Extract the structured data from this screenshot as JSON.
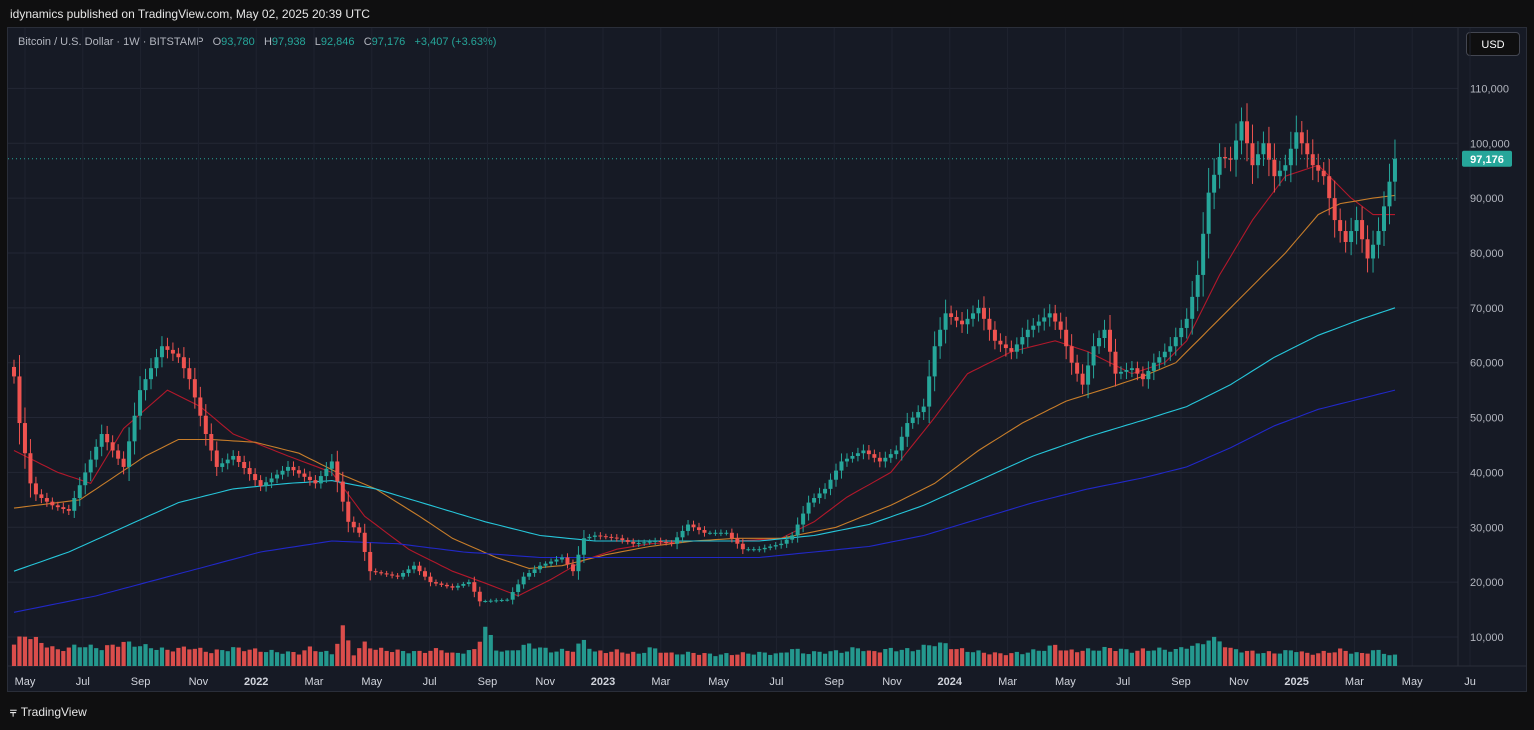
{
  "header": {
    "published": "idynamics published on TradingView.com, May 02, 2025 20:39 UTC"
  },
  "legend": {
    "symbol": "Bitcoin / U.S. Dollar · 1W · BITSTAMP",
    "open_label": "O",
    "open": "93,780",
    "high_label": "H",
    "high": "97,938",
    "low_label": "L",
    "low": "92,846",
    "close_label": "C",
    "close": "97,176",
    "change": "+3,407 (+3.63%)"
  },
  "currency_button": "USD",
  "price_badge": "97,176",
  "footer": {
    "brand": "TradingView",
    "logo_icon": "tradingview-logo-icon"
  },
  "colors": {
    "up": "#26a69a",
    "down": "#ef5350",
    "background": "#161a25"
  },
  "chart_data": {
    "type": "candlestick",
    "interval": "1W",
    "ylim": [
      3000,
      118000
    ],
    "y_ticks": [
      10000,
      20000,
      30000,
      40000,
      50000,
      60000,
      70000,
      80000,
      90000,
      100000,
      110000
    ],
    "y_tick_labels": [
      "10,000",
      "20,000",
      "30,000",
      "40,000",
      "50,000",
      "60,000",
      "70,000",
      "80,000",
      "90,000",
      "100,000",
      "110,000"
    ],
    "x_tick_labels": [
      "May",
      "Jul",
      "Sep",
      "Nov",
      "2022",
      "Mar",
      "May",
      "Jul",
      "Sep",
      "Nov",
      "2023",
      "Mar",
      "May",
      "Jul",
      "Sep",
      "Nov",
      "2024",
      "Mar",
      "May",
      "Jul",
      "Sep",
      "Nov",
      "2025",
      "Mar",
      "May",
      "Ju"
    ],
    "last_price": 97176,
    "price_anchors": [
      [
        0,
        57500
      ],
      [
        1,
        49000
      ],
      [
        3,
        38000
      ],
      [
        4,
        36000
      ],
      [
        7,
        34000
      ],
      [
        10,
        33000
      ],
      [
        13,
        40000
      ],
      [
        16,
        47000
      ],
      [
        20,
        41000
      ],
      [
        23,
        55000
      ],
      [
        27,
        63000
      ],
      [
        30,
        61000
      ],
      [
        32,
        57000
      ],
      [
        35,
        47000
      ],
      [
        37,
        41000
      ],
      [
        40,
        43000
      ],
      [
        45,
        37500
      ],
      [
        50,
        41000
      ],
      [
        55,
        38000
      ],
      [
        58,
        42000
      ],
      [
        61,
        31000
      ],
      [
        63,
        29000
      ],
      [
        65,
        22000
      ],
      [
        70,
        21000
      ],
      [
        73,
        23000
      ],
      [
        76,
        20000
      ],
      [
        80,
        19000
      ],
      [
        83,
        20000
      ],
      [
        85,
        16500
      ],
      [
        90,
        16800
      ],
      [
        93,
        21000
      ],
      [
        96,
        23000
      ],
      [
        100,
        24500
      ],
      [
        102,
        22000
      ],
      [
        104,
        28000
      ],
      [
        106,
        28500
      ],
      [
        110,
        28000
      ],
      [
        113,
        27000
      ],
      [
        117,
        27500
      ],
      [
        120,
        27000
      ],
      [
        123,
        30500
      ],
      [
        126,
        29000
      ],
      [
        130,
        29000
      ],
      [
        133,
        26000
      ],
      [
        136,
        26000
      ],
      [
        140,
        27000
      ],
      [
        142,
        28500
      ],
      [
        145,
        34500
      ],
      [
        148,
        37000
      ],
      [
        151,
        42000
      ],
      [
        155,
        44000
      ],
      [
        158,
        42000
      ],
      [
        161,
        44000
      ],
      [
        163,
        49000
      ],
      [
        166,
        52000
      ],
      [
        168,
        63000
      ],
      [
        170,
        69000
      ],
      [
        173,
        67000
      ],
      [
        176,
        70000
      ],
      [
        179,
        64000
      ],
      [
        182,
        62000
      ],
      [
        185,
        66000
      ],
      [
        189,
        69000
      ],
      [
        191,
        66000
      ],
      [
        193,
        60000
      ],
      [
        195,
        56000
      ],
      [
        197,
        63000
      ],
      [
        199,
        66000
      ],
      [
        201,
        58000
      ],
      [
        204,
        59000
      ],
      [
        206,
        57000
      ],
      [
        208,
        60000
      ],
      [
        211,
        63000
      ],
      [
        214,
        68000
      ],
      [
        216,
        76000
      ],
      [
        218,
        91000
      ],
      [
        220,
        97500
      ],
      [
        222,
        97000
      ],
      [
        224,
        104000
      ],
      [
        226,
        96000
      ],
      [
        228,
        100000
      ],
      [
        230,
        94000
      ],
      [
        232,
        96000
      ],
      [
        234,
        102000
      ],
      [
        237,
        96000
      ],
      [
        239,
        94000
      ],
      [
        241,
        86000
      ],
      [
        243,
        82000
      ],
      [
        245,
        86000
      ],
      [
        247,
        79000
      ],
      [
        249,
        84000
      ],
      [
        251,
        93000
      ],
      [
        252,
        97176
      ]
    ],
    "volume_anchors": [
      [
        0,
        11500
      ],
      [
        2,
        17000
      ],
      [
        5,
        12500
      ],
      [
        8,
        8500
      ],
      [
        12,
        11000
      ],
      [
        16,
        9500
      ],
      [
        20,
        12500
      ],
      [
        24,
        10500
      ],
      [
        28,
        8500
      ],
      [
        32,
        10000
      ],
      [
        36,
        7500
      ],
      [
        40,
        9500
      ],
      [
        44,
        8500
      ],
      [
        48,
        7500
      ],
      [
        52,
        7000
      ],
      [
        54,
        9500
      ],
      [
        56,
        8000
      ],
      [
        58,
        6500
      ],
      [
        60,
        20000
      ],
      [
        62,
        6500
      ],
      [
        64,
        12000
      ],
      [
        66,
        9000
      ],
      [
        70,
        8000
      ],
      [
        74,
        7500
      ],
      [
        78,
        9000
      ],
      [
        80,
        6500
      ],
      [
        84,
        8500
      ],
      [
        86,
        21000
      ],
      [
        88,
        9000
      ],
      [
        90,
        7500
      ],
      [
        94,
        11500
      ],
      [
        98,
        8000
      ],
      [
        102,
        8500
      ],
      [
        104,
        13500
      ],
      [
        106,
        7500
      ],
      [
        110,
        8000
      ],
      [
        114,
        6500
      ],
      [
        116,
        9500
      ],
      [
        120,
        6500
      ],
      [
        124,
        7000
      ],
      [
        128,
        6000
      ],
      [
        132,
        6500
      ],
      [
        136,
        7000
      ],
      [
        140,
        6500
      ],
      [
        142,
        9500
      ],
      [
        144,
        7000
      ],
      [
        148,
        7500
      ],
      [
        152,
        8000
      ],
      [
        154,
        10000
      ],
      [
        156,
        7500
      ],
      [
        160,
        9000
      ],
      [
        164,
        8500
      ],
      [
        168,
        12000
      ],
      [
        170,
        11500
      ],
      [
        172,
        9000
      ],
      [
        176,
        7500
      ],
      [
        180,
        6500
      ],
      [
        184,
        7000
      ],
      [
        188,
        9000
      ],
      [
        190,
        11000
      ],
      [
        192,
        8000
      ],
      [
        196,
        8500
      ],
      [
        200,
        9500
      ],
      [
        204,
        8000
      ],
      [
        208,
        9000
      ],
      [
        212,
        8500
      ],
      [
        214,
        10500
      ],
      [
        216,
        11000
      ],
      [
        218,
        14500
      ],
      [
        220,
        13500
      ],
      [
        222,
        9000
      ],
      [
        226,
        7500
      ],
      [
        230,
        7000
      ],
      [
        234,
        8500
      ],
      [
        236,
        6500
      ],
      [
        240,
        7500
      ],
      [
        242,
        8500
      ],
      [
        246,
        6500
      ],
      [
        248,
        8500
      ],
      [
        250,
        7000
      ],
      [
        252,
        5500
      ]
    ],
    "moving_averages": [
      {
        "color": "#b2182b",
        "anchors": [
          [
            0,
            44000
          ],
          [
            8,
            40000
          ],
          [
            14,
            38000
          ],
          [
            20,
            48000
          ],
          [
            28,
            55000
          ],
          [
            34,
            52000
          ],
          [
            40,
            47000
          ],
          [
            50,
            43000
          ],
          [
            58,
            40000
          ],
          [
            64,
            32000
          ],
          [
            72,
            26000
          ],
          [
            80,
            22000
          ],
          [
            86,
            19800
          ],
          [
            92,
            17500
          ],
          [
            98,
            20500
          ],
          [
            104,
            24000
          ],
          [
            110,
            26000
          ],
          [
            116,
            27000
          ],
          [
            124,
            27500
          ],
          [
            132,
            27500
          ],
          [
            140,
            28000
          ],
          [
            146,
            31000
          ],
          [
            152,
            35500
          ],
          [
            160,
            40000
          ],
          [
            168,
            50000
          ],
          [
            174,
            58000
          ],
          [
            182,
            62000
          ],
          [
            190,
            64000
          ],
          [
            196,
            62000
          ],
          [
            204,
            58000
          ],
          [
            210,
            60000
          ],
          [
            214,
            64000
          ],
          [
            220,
            76000
          ],
          [
            226,
            86000
          ],
          [
            232,
            94000
          ],
          [
            238,
            96000
          ],
          [
            244,
            90000
          ],
          [
            248,
            87000
          ],
          [
            252,
            87000
          ]
        ]
      },
      {
        "color": "#c77d2a",
        "anchors": [
          [
            0,
            33500
          ],
          [
            12,
            35000
          ],
          [
            18,
            39000
          ],
          [
            24,
            43000
          ],
          [
            30,
            46000
          ],
          [
            36,
            46000
          ],
          [
            44,
            45500
          ],
          [
            52,
            43500
          ],
          [
            60,
            39500
          ],
          [
            66,
            37000
          ],
          [
            74,
            32000
          ],
          [
            80,
            28000
          ],
          [
            88,
            24500
          ],
          [
            94,
            22500
          ],
          [
            100,
            23000
          ],
          [
            108,
            25000
          ],
          [
            116,
            26500
          ],
          [
            124,
            27500
          ],
          [
            132,
            28000
          ],
          [
            140,
            28000
          ],
          [
            150,
            30000
          ],
          [
            160,
            34000
          ],
          [
            168,
            38000
          ],
          [
            176,
            44000
          ],
          [
            184,
            49000
          ],
          [
            192,
            53000
          ],
          [
            200,
            55500
          ],
          [
            206,
            57500
          ],
          [
            212,
            60000
          ],
          [
            218,
            66000
          ],
          [
            224,
            72000
          ],
          [
            232,
            80000
          ],
          [
            238,
            87000
          ],
          [
            242,
            89000
          ],
          [
            248,
            90000
          ],
          [
            252,
            90500
          ]
        ]
      },
      {
        "color": "#26c6da",
        "anchors": [
          [
            0,
            22000
          ],
          [
            10,
            25500
          ],
          [
            20,
            30000
          ],
          [
            30,
            34500
          ],
          [
            40,
            37000
          ],
          [
            50,
            38000
          ],
          [
            58,
            38500
          ],
          [
            66,
            37000
          ],
          [
            76,
            34000
          ],
          [
            86,
            31000
          ],
          [
            96,
            28500
          ],
          [
            106,
            27500
          ],
          [
            116,
            27500
          ],
          [
            126,
            27500
          ],
          [
            136,
            27500
          ],
          [
            146,
            28500
          ],
          [
            156,
            30500
          ],
          [
            166,
            34000
          ],
          [
            176,
            38500
          ],
          [
            186,
            43000
          ],
          [
            196,
            46500
          ],
          [
            206,
            49500
          ],
          [
            214,
            52000
          ],
          [
            222,
            56000
          ],
          [
            230,
            61000
          ],
          [
            238,
            65000
          ],
          [
            246,
            68000
          ],
          [
            252,
            70000
          ]
        ]
      },
      {
        "color": "#2128c8",
        "anchors": [
          [
            0,
            14500
          ],
          [
            15,
            17500
          ],
          [
            30,
            21500
          ],
          [
            45,
            25500
          ],
          [
            58,
            27500
          ],
          [
            70,
            27000
          ],
          [
            82,
            25500
          ],
          [
            96,
            24500
          ],
          [
            110,
            24500
          ],
          [
            124,
            24500
          ],
          [
            136,
            24500
          ],
          [
            146,
            25500
          ],
          [
            156,
            26500
          ],
          [
            166,
            28500
          ],
          [
            176,
            31500
          ],
          [
            186,
            34500
          ],
          [
            196,
            37000
          ],
          [
            206,
            39000
          ],
          [
            214,
            41000
          ],
          [
            222,
            44500
          ],
          [
            230,
            48500
          ],
          [
            238,
            51500
          ],
          [
            246,
            53500
          ],
          [
            252,
            55000
          ]
        ]
      }
    ]
  }
}
